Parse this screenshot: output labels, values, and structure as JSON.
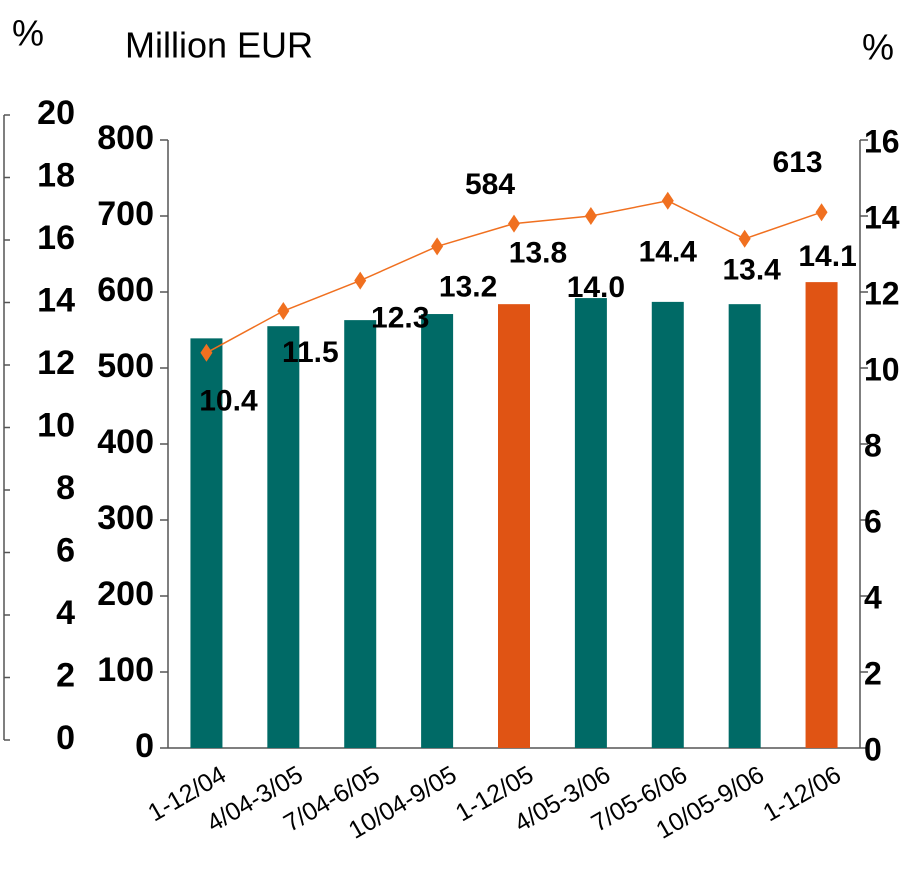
{
  "chart_data": {
    "type": "bar_line",
    "title": "Million EUR",
    "y2_label": "%",
    "y3_label": "%",
    "categories": [
      "1-12/04",
      "4/04-3/05",
      "7/04-6/05",
      "10/04-9/05",
      "1-12/05",
      "4/05-3/06",
      "7/05-6/06",
      "10/05-9/06",
      "1-12/06"
    ],
    "series": [
      {
        "type": "bar",
        "colors": [
          "#006a66",
          "#006a66",
          "#006a66",
          "#006a66",
          "#e05414",
          "#006a66",
          "#006a66",
          "#006a66",
          "#e05414"
        ],
        "values": [
          539,
          555,
          563,
          571,
          584,
          592,
          587,
          584,
          613
        ],
        "value_labels": [
          null,
          null,
          null,
          null,
          "584",
          null,
          null,
          null,
          "613"
        ]
      },
      {
        "type": "line",
        "axis": "y2",
        "color": "#f07020",
        "values": [
          10.4,
          11.5,
          12.3,
          13.2,
          13.8,
          14.0,
          14.4,
          13.4,
          14.1
        ],
        "value_labels": [
          "10.4",
          "11.5",
          "12.3",
          "13.2",
          "13.8",
          "14.0",
          "14.4",
          "13.4",
          "14.1"
        ]
      }
    ],
    "ylim": [
      0,
      800
    ],
    "yticks": [
      0,
      100,
      200,
      300,
      400,
      500,
      600,
      700,
      800
    ],
    "y2lim": [
      0,
      16
    ],
    "y2ticks": [
      0,
      2,
      4,
      6,
      8,
      10,
      12,
      14,
      16
    ],
    "y3lim": [
      0,
      20
    ],
    "y3ticks": [
      0,
      2,
      4,
      6,
      8,
      10,
      12,
      14,
      16,
      18,
      20
    ]
  }
}
